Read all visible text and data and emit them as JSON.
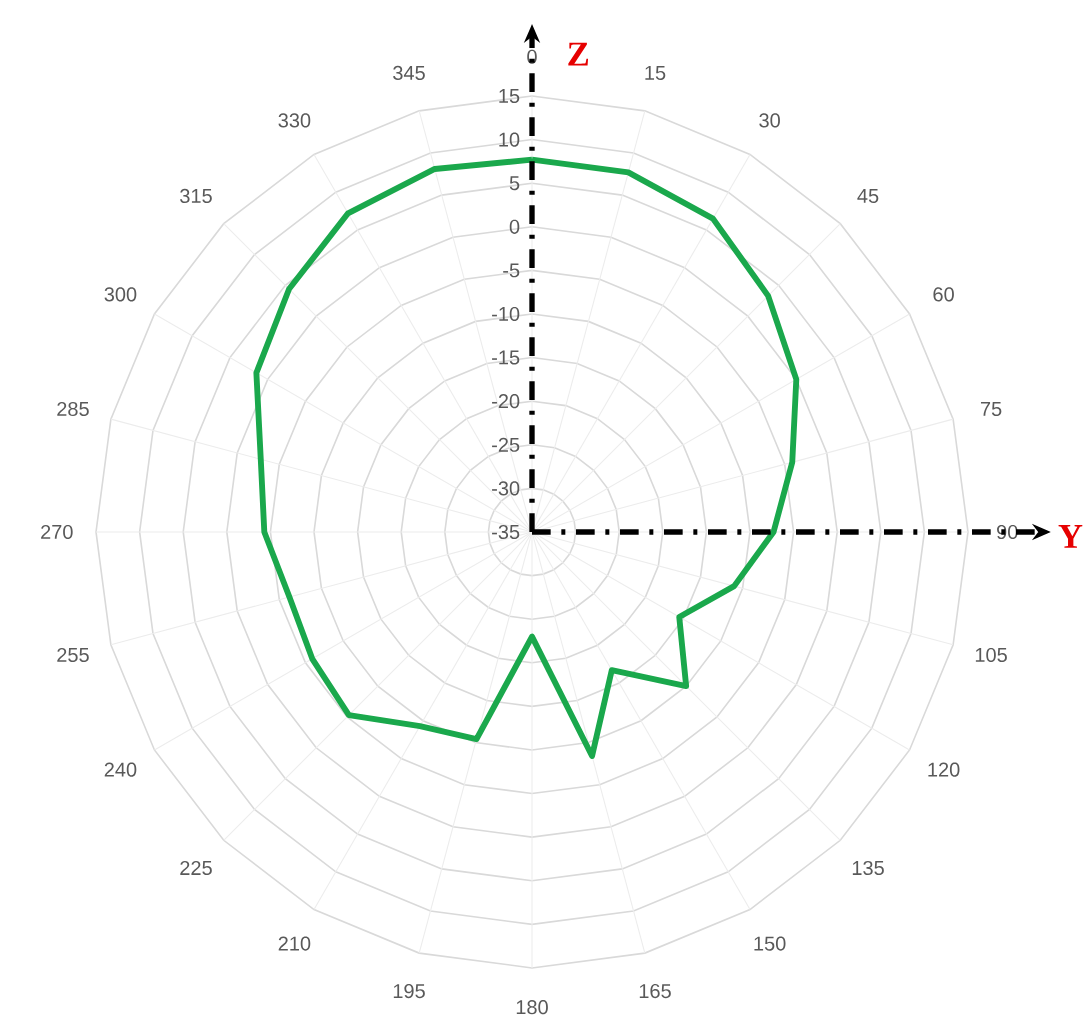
{
  "chart_data": {
    "type": "radar",
    "categories": [
      "0",
      "15",
      "30",
      "45",
      "60",
      "75",
      "90",
      "105",
      "120",
      "135",
      "150",
      "165",
      "180",
      "195",
      "210",
      "225",
      "240",
      "255",
      "270",
      "285",
      "300",
      "315",
      "330",
      "345"
    ],
    "series": [
      {
        "color": "#1aa84c",
        "values": [
          7.7,
          7.7,
          6.5,
          3.3,
          0,
          -4.1,
          -7.3,
          -11,
          -15.5,
          -10,
          -16.7,
          -8.4,
          -23,
          -10.4,
          -9.3,
          -5.3,
          -5.9,
          -6.2,
          -4.3,
          -2.8,
          1.5,
          4.4,
          7.2,
          8.1
        ]
      }
    ],
    "ylim": [
      -35,
      15
    ],
    "yticks": [
      -35,
      -30,
      -25,
      -20,
      -15,
      -10,
      -5,
      0,
      5,
      10,
      15
    ],
    "grid": true,
    "annotations": [
      "Z",
      "Y"
    ]
  }
}
